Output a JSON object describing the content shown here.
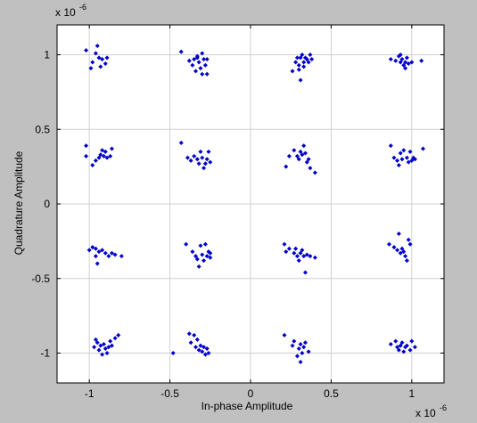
{
  "chart_data": {
    "type": "scatter",
    "title": "",
    "xlabel": "In-phase Amplitude",
    "ylabel": "Quadrature Amplitude",
    "x_exponent_label": "x 10",
    "x_exponent_power": "-6",
    "y_exponent_label": "x 10",
    "y_exponent_power": "-6",
    "xlim": [
      -1.2,
      1.2
    ],
    "ylim": [
      -1.2,
      1.2
    ],
    "x_ticks": [
      -1,
      -0.5,
      0,
      0.5,
      1
    ],
    "y_ticks": [
      -1,
      -0.5,
      0,
      0.5,
      1
    ],
    "x_tick_labels": [
      "-1",
      "-0.5",
      "0",
      "0.5",
      "1"
    ],
    "y_tick_labels": [
      "-1",
      "-0.5",
      "0",
      "0.5",
      "1"
    ],
    "grid": true,
    "marker": "diamond",
    "marker_color": "#0000cc",
    "series": [
      {
        "points": [
          [
            -1.02,
            1.03
          ],
          [
            -0.98,
            0.95
          ],
          [
            -0.96,
            1.01
          ],
          [
            -0.95,
            1.06
          ],
          [
            -0.94,
            0.98
          ],
          [
            -0.92,
            0.97
          ],
          [
            -0.9,
            0.94
          ],
          [
            -0.89,
            0.98
          ],
          [
            -0.99,
            0.91
          ],
          [
            -0.93,
            0.92
          ],
          [
            -0.43,
            1.02
          ],
          [
            -0.38,
            0.96
          ],
          [
            -0.36,
            0.93
          ],
          [
            -0.35,
            0.97
          ],
          [
            -0.33,
            0.99
          ],
          [
            -0.32,
            0.95
          ],
          [
            -0.31,
            0.91
          ],
          [
            -0.3,
            1.01
          ],
          [
            -0.29,
            0.97
          ],
          [
            -0.28,
            0.93
          ],
          [
            -0.27,
            0.97
          ],
          [
            -0.34,
            0.89
          ],
          [
            -0.3,
            0.87
          ],
          [
            -0.27,
            0.87
          ],
          [
            -0.33,
            0.98
          ],
          [
            0.26,
            0.89
          ],
          [
            0.28,
            0.95
          ],
          [
            0.29,
            0.98
          ],
          [
            0.3,
            0.93
          ],
          [
            0.31,
            0.98
          ],
          [
            0.32,
            1.0
          ],
          [
            0.33,
            0.95
          ],
          [
            0.34,
            0.98
          ],
          [
            0.35,
            0.97
          ],
          [
            0.36,
            0.95
          ],
          [
            0.37,
            1.0
          ],
          [
            0.38,
            0.97
          ],
          [
            0.31,
            0.83
          ],
          [
            0.3,
            0.9
          ],
          [
            0.33,
            0.92
          ],
          [
            0.87,
            0.97
          ],
          [
            0.9,
            0.96
          ],
          [
            0.92,
            0.99
          ],
          [
            0.93,
            0.95
          ],
          [
            0.94,
            0.97
          ],
          [
            0.95,
            0.93
          ],
          [
            0.96,
            0.95
          ],
          [
            0.97,
            0.98
          ],
          [
            0.98,
            0.94
          ],
          [
            1.0,
            0.95
          ],
          [
            0.96,
            0.91
          ],
          [
            1.06,
            0.96
          ],
          [
            0.93,
            1.0
          ],
          [
            -1.02,
            0.39
          ],
          [
            -0.98,
            0.26
          ],
          [
            -0.96,
            0.29
          ],
          [
            -0.94,
            0.31
          ],
          [
            -0.93,
            0.33
          ],
          [
            -0.92,
            0.36
          ],
          [
            -0.91,
            0.32
          ],
          [
            -0.9,
            0.35
          ],
          [
            -0.89,
            0.31
          ],
          [
            -0.87,
            0.32
          ],
          [
            -0.86,
            0.37
          ],
          [
            -1.02,
            0.32
          ],
          [
            -0.43,
            0.41
          ],
          [
            -0.39,
            0.31
          ],
          [
            -0.37,
            0.29
          ],
          [
            -0.35,
            0.32
          ],
          [
            -0.33,
            0.3
          ],
          [
            -0.32,
            0.27
          ],
          [
            -0.31,
            0.35
          ],
          [
            -0.3,
            0.31
          ],
          [
            -0.29,
            0.24
          ],
          [
            -0.28,
            0.27
          ],
          [
            -0.27,
            0.3
          ],
          [
            -0.26,
            0.35
          ],
          [
            -0.25,
            0.28
          ],
          [
            0.22,
            0.25
          ],
          [
            0.24,
            0.32
          ],
          [
            0.27,
            0.36
          ],
          [
            0.29,
            0.32
          ],
          [
            0.3,
            0.3
          ],
          [
            0.31,
            0.35
          ],
          [
            0.32,
            0.33
          ],
          [
            0.33,
            0.39
          ],
          [
            0.34,
            0.34
          ],
          [
            0.35,
            0.28
          ],
          [
            0.36,
            0.3
          ],
          [
            0.37,
            0.24
          ],
          [
            0.4,
            0.21
          ],
          [
            0.87,
            0.39
          ],
          [
            0.89,
            0.31
          ],
          [
            0.91,
            0.29
          ],
          [
            0.93,
            0.34
          ],
          [
            0.94,
            0.3
          ],
          [
            0.95,
            0.36
          ],
          [
            0.97,
            0.31
          ],
          [
            0.98,
            0.28
          ],
          [
            0.99,
            0.35
          ],
          [
            1.0,
            0.29
          ],
          [
            1.01,
            0.31
          ],
          [
            1.02,
            0.3
          ],
          [
            1.07,
            0.37
          ],
          [
            0.92,
            0.26
          ],
          [
            -1.0,
            -0.31
          ],
          [
            -0.98,
            -0.29
          ],
          [
            -0.96,
            -0.35
          ],
          [
            -0.95,
            -0.4
          ],
          [
            -0.94,
            -0.32
          ],
          [
            -0.92,
            -0.31
          ],
          [
            -0.9,
            -0.33
          ],
          [
            -0.88,
            -0.35
          ],
          [
            -0.86,
            -0.33
          ],
          [
            -0.84,
            -0.34
          ],
          [
            -0.8,
            -0.35
          ],
          [
            -0.96,
            -0.3
          ],
          [
            -0.4,
            -0.27
          ],
          [
            -0.36,
            -0.32
          ],
          [
            -0.34,
            -0.35
          ],
          [
            -0.33,
            -0.37
          ],
          [
            -0.32,
            -0.42
          ],
          [
            -0.31,
            -0.28
          ],
          [
            -0.3,
            -0.34
          ],
          [
            -0.29,
            -0.38
          ],
          [
            -0.28,
            -0.27
          ],
          [
            -0.27,
            -0.35
          ],
          [
            -0.26,
            -0.32
          ],
          [
            -0.25,
            -0.36
          ],
          [
            -0.25,
            -0.33
          ],
          [
            0.21,
            -0.27
          ],
          [
            0.22,
            -0.32
          ],
          [
            0.24,
            -0.3
          ],
          [
            0.27,
            -0.33
          ],
          [
            0.28,
            -0.3
          ],
          [
            0.29,
            -0.35
          ],
          [
            0.3,
            -0.38
          ],
          [
            0.31,
            -0.33
          ],
          [
            0.32,
            -0.31
          ],
          [
            0.33,
            -0.35
          ],
          [
            0.34,
            -0.46
          ],
          [
            0.35,
            -0.34
          ],
          [
            0.37,
            -0.35
          ],
          [
            0.4,
            -0.36
          ],
          [
            0.86,
            -0.27
          ],
          [
            0.89,
            -0.29
          ],
          [
            0.91,
            -0.31
          ],
          [
            0.92,
            -0.2
          ],
          [
            0.93,
            -0.33
          ],
          [
            0.94,
            -0.3
          ],
          [
            0.95,
            -0.32
          ],
          [
            0.96,
            -0.35
          ],
          [
            0.97,
            -0.38
          ],
          [
            0.99,
            -0.27
          ],
          [
            0.98,
            -0.24
          ],
          [
            -0.97,
            -0.96
          ],
          [
            -0.95,
            -0.93
          ],
          [
            -0.94,
            -0.98
          ],
          [
            -0.93,
            -0.95
          ],
          [
            -0.92,
            -1.01
          ],
          [
            -0.91,
            -0.94
          ],
          [
            -0.9,
            -0.97
          ],
          [
            -0.89,
            -1.0
          ],
          [
            -0.88,
            -0.96
          ],
          [
            -0.87,
            -0.92
          ],
          [
            -0.86,
            -0.95
          ],
          [
            -0.84,
            -0.9
          ],
          [
            -0.82,
            -0.88
          ],
          [
            -0.96,
            -0.91
          ],
          [
            -0.48,
            -1.0
          ],
          [
            -0.38,
            -0.87
          ],
          [
            -0.37,
            -0.93
          ],
          [
            -0.35,
            -0.88
          ],
          [
            -0.34,
            -0.96
          ],
          [
            -0.33,
            -0.91
          ],
          [
            -0.32,
            -0.98
          ],
          [
            -0.31,
            -0.95
          ],
          [
            -0.3,
            -0.99
          ],
          [
            -0.29,
            -0.96
          ],
          [
            -0.28,
            -1.01
          ],
          [
            -0.27,
            -0.97
          ],
          [
            -0.26,
            -1.0
          ],
          [
            0.21,
            -0.88
          ],
          [
            0.26,
            -0.95
          ],
          [
            0.27,
            -0.92
          ],
          [
            0.29,
            -1.02
          ],
          [
            0.3,
            -0.97
          ],
          [
            0.31,
            -0.94
          ],
          [
            0.32,
            -1.0
          ],
          [
            0.33,
            -0.96
          ],
          [
            0.34,
            -0.93
          ],
          [
            0.31,
            -1.06
          ],
          [
            0.36,
            -0.99
          ],
          [
            0.87,
            -0.94
          ],
          [
            0.9,
            -0.92
          ],
          [
            0.91,
            -0.96
          ],
          [
            0.92,
            -0.98
          ],
          [
            0.93,
            -0.95
          ],
          [
            0.94,
            -0.93
          ],
          [
            0.95,
            -0.99
          ],
          [
            0.96,
            -0.96
          ],
          [
            0.97,
            -0.95
          ],
          [
            0.99,
            -0.98
          ],
          [
            1.0,
            -0.92
          ],
          [
            1.02,
            -0.96
          ]
        ]
      }
    ]
  }
}
